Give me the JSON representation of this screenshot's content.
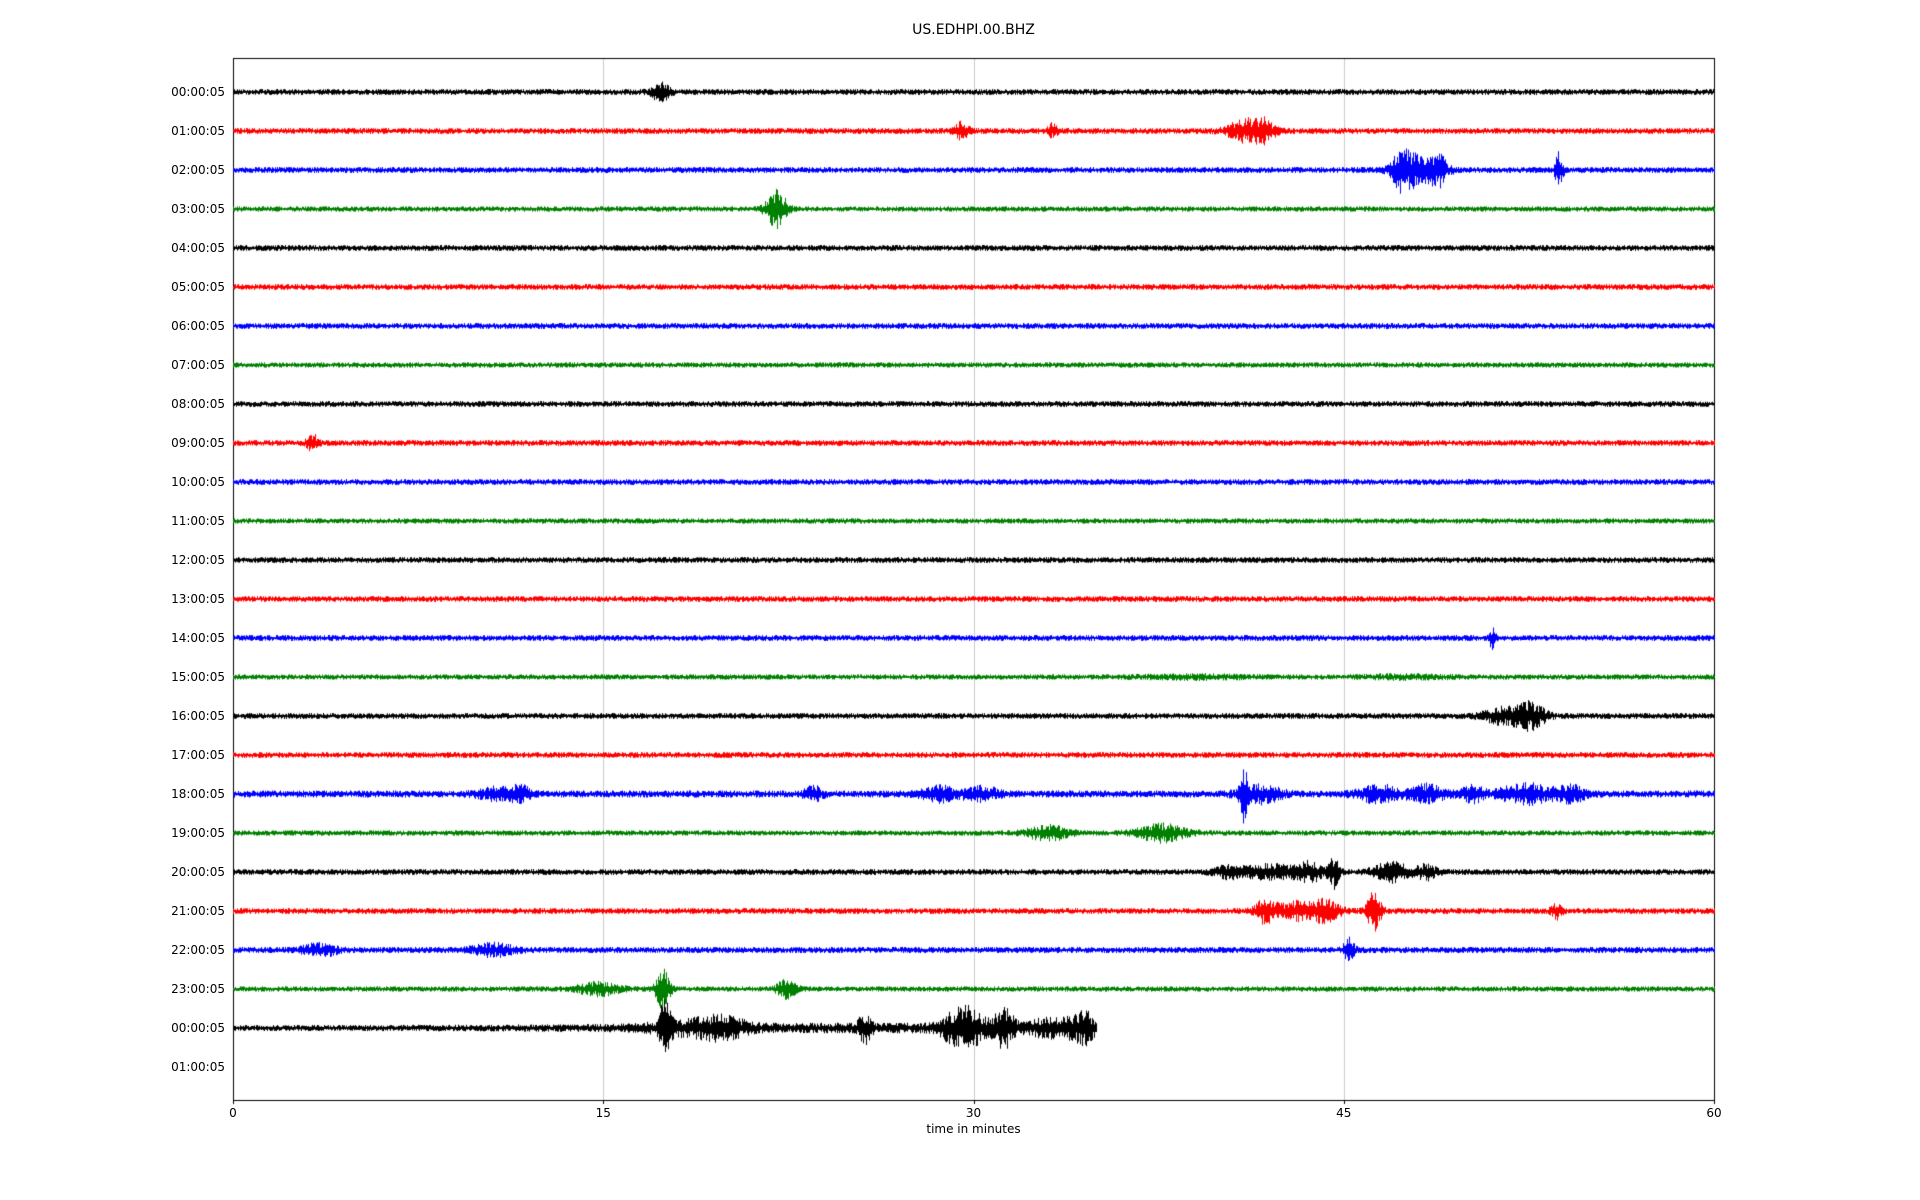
{
  "chart_data": {
    "type": "line",
    "subtype": "seismogram-helicorder",
    "title": "US.EDHPI.00.BHZ",
    "xlabel": "time in minutes",
    "x_range": [
      0,
      60
    ],
    "x_ticks": [
      "0",
      "15",
      "30",
      "45",
      "60"
    ],
    "grid_minutes": [
      15,
      30,
      45
    ],
    "grid_color": "#cccccc",
    "frame_color": "#000000",
    "trace_colors": [
      "#000000",
      "#ff0000",
      "#0000ff",
      "#008000"
    ],
    "noise_seed": 42,
    "rows": [
      {
        "label": "00:00:05",
        "color": 0,
        "base": 3.0,
        "end": 60,
        "events": [
          {
            "c": 17.3,
            "w": 0.25,
            "a": 3.0
          }
        ]
      },
      {
        "label": "01:00:05",
        "color": 1,
        "base": 3.0,
        "end": 60,
        "events": [
          {
            "c": 29.5,
            "w": 0.2,
            "a": 2.5
          },
          {
            "c": 33.2,
            "w": 0.15,
            "a": 2.2
          },
          {
            "c": 41.0,
            "w": 0.5,
            "a": 3.5
          },
          {
            "c": 41.8,
            "w": 0.3,
            "a": 3.0
          }
        ]
      },
      {
        "label": "02:00:05",
        "color": 2,
        "base": 3.0,
        "end": 60,
        "events": [
          {
            "c": 47.4,
            "w": 0.35,
            "a": 7.0
          },
          {
            "c": 48.4,
            "w": 0.5,
            "a": 4.0
          },
          {
            "c": 48.9,
            "w": 0.2,
            "a": 3.0
          },
          {
            "c": 53.7,
            "w": 0.12,
            "a": 6.0
          }
        ]
      },
      {
        "label": "03:00:05",
        "color": 3,
        "base": 2.7,
        "end": 60,
        "events": [
          {
            "c": 22.0,
            "w": 0.3,
            "a": 6.5
          }
        ]
      },
      {
        "label": "04:00:05",
        "color": 0,
        "base": 3.0,
        "end": 60,
        "events": []
      },
      {
        "label": "05:00:05",
        "color": 1,
        "base": 3.0,
        "end": 60,
        "events": []
      },
      {
        "label": "06:00:05",
        "color": 2,
        "base": 3.0,
        "end": 60,
        "events": []
      },
      {
        "label": "07:00:05",
        "color": 3,
        "base": 2.7,
        "end": 60,
        "events": []
      },
      {
        "label": "08:00:05",
        "color": 0,
        "base": 3.0,
        "end": 60,
        "events": []
      },
      {
        "label": "09:00:05",
        "color": 1,
        "base": 3.0,
        "end": 60,
        "events": [
          {
            "c": 3.2,
            "w": 0.15,
            "a": 2.8
          }
        ]
      },
      {
        "label": "10:00:05",
        "color": 2,
        "base": 3.0,
        "end": 60,
        "events": []
      },
      {
        "label": "11:00:05",
        "color": 3,
        "base": 2.7,
        "end": 60,
        "events": []
      },
      {
        "label": "12:00:05",
        "color": 0,
        "base": 3.0,
        "end": 60,
        "events": []
      },
      {
        "label": "13:00:05",
        "color": 1,
        "base": 3.0,
        "end": 60,
        "events": []
      },
      {
        "label": "14:00:05",
        "color": 2,
        "base": 3.0,
        "end": 60,
        "events": [
          {
            "c": 51.0,
            "w": 0.1,
            "a": 3.0
          }
        ]
      },
      {
        "label": "15:00:05",
        "color": 3,
        "base": 2.7,
        "end": 60,
        "events": [
          {
            "c": 39.0,
            "w": 1.5,
            "a": 0.5
          },
          {
            "c": 47.5,
            "w": 1.2,
            "a": 0.5
          }
        ]
      },
      {
        "label": "16:00:05",
        "color": 0,
        "base": 3.0,
        "end": 60,
        "events": [
          {
            "c": 51.5,
            "w": 0.6,
            "a": 2.5
          },
          {
            "c": 52.6,
            "w": 0.4,
            "a": 4.0
          }
        ]
      },
      {
        "label": "17:00:05",
        "color": 1,
        "base": 3.0,
        "end": 60,
        "events": []
      },
      {
        "label": "18:00:05",
        "color": 2,
        "base": 3.6,
        "end": 60,
        "events": [
          {
            "c": 10.8,
            "w": 0.6,
            "a": 1.6
          },
          {
            "c": 11.6,
            "w": 0.3,
            "a": 1.6
          },
          {
            "c": 23.5,
            "w": 0.25,
            "a": 1.8
          },
          {
            "c": 28.6,
            "w": 0.5,
            "a": 1.8
          },
          {
            "c": 30.3,
            "w": 0.5,
            "a": 1.8
          },
          {
            "c": 40.9,
            "w": 0.12,
            "a": 8.0
          },
          {
            "c": 41.6,
            "w": 0.6,
            "a": 2.2
          },
          {
            "c": 46.4,
            "w": 0.6,
            "a": 2.2
          },
          {
            "c": 48.4,
            "w": 0.5,
            "a": 2.4
          },
          {
            "c": 50.2,
            "w": 0.3,
            "a": 2.0
          },
          {
            "c": 52.4,
            "w": 0.8,
            "a": 2.4
          },
          {
            "c": 54.2,
            "w": 0.4,
            "a": 2.0
          }
        ]
      },
      {
        "label": "19:00:05",
        "color": 3,
        "base": 2.7,
        "end": 60,
        "events": [
          {
            "c": 33.0,
            "w": 0.6,
            "a": 2.5
          },
          {
            "c": 37.6,
            "w": 0.7,
            "a": 3.0
          }
        ]
      },
      {
        "label": "20:00:05",
        "color": 0,
        "base": 3.0,
        "end": 60,
        "events": [
          {
            "c": 40.3,
            "w": 0.4,
            "a": 1.8
          },
          {
            "c": 42.0,
            "w": 0.8,
            "a": 2.2
          },
          {
            "c": 43.6,
            "w": 0.4,
            "a": 3.0
          },
          {
            "c": 44.6,
            "w": 0.15,
            "a": 5.0
          },
          {
            "c": 46.9,
            "w": 0.5,
            "a": 3.0
          },
          {
            "c": 48.3,
            "w": 0.3,
            "a": 2.5
          }
        ]
      },
      {
        "label": "21:00:05",
        "color": 1,
        "base": 3.0,
        "end": 60,
        "events": [
          {
            "c": 41.8,
            "w": 0.3,
            "a": 3.5
          },
          {
            "c": 43.2,
            "w": 0.7,
            "a": 2.8
          },
          {
            "c": 44.3,
            "w": 0.4,
            "a": 2.5
          },
          {
            "c": 46.2,
            "w": 0.2,
            "a": 6.5
          },
          {
            "c": 53.6,
            "w": 0.15,
            "a": 2.5
          }
        ]
      },
      {
        "label": "22:00:05",
        "color": 2,
        "base": 3.1,
        "end": 60,
        "events": [
          {
            "c": 3.5,
            "w": 0.5,
            "a": 1.8
          },
          {
            "c": 10.5,
            "w": 0.6,
            "a": 1.8
          },
          {
            "c": 45.2,
            "w": 0.15,
            "a": 4.0
          }
        ]
      },
      {
        "label": "23:00:05",
        "color": 3,
        "base": 2.7,
        "end": 60,
        "events": [
          {
            "c": 14.8,
            "w": 0.6,
            "a": 2.2
          },
          {
            "c": 17.4,
            "w": 0.2,
            "a": 7.0
          },
          {
            "c": 22.4,
            "w": 0.3,
            "a": 3.0
          }
        ]
      },
      {
        "label": "00:00:05",
        "color": 0,
        "base": 3.0,
        "end": 35,
        "events": [
          {
            "c": 17.5,
            "w": 0.15,
            "a": 9.0
          },
          {
            "c": 18.6,
            "w": 1.2,
            "a": 2.0
          },
          {
            "c": 19.9,
            "w": 0.6,
            "a": 2.2
          },
          {
            "c": 25.6,
            "w": 0.2,
            "a": 4.0
          },
          {
            "c": 26.0,
            "w": 9.0,
            "a": 0.8
          },
          {
            "c": 29.2,
            "w": 0.4,
            "a": 4.0
          },
          {
            "c": 29.9,
            "w": 0.4,
            "a": 5.0
          },
          {
            "c": 31.2,
            "w": 0.3,
            "a": 6.0
          },
          {
            "c": 33.4,
            "w": 0.8,
            "a": 3.0
          },
          {
            "c": 34.5,
            "w": 0.25,
            "a": 4.0
          }
        ]
      },
      {
        "label": "01:00:05",
        "color": 1,
        "base": 3.0,
        "end": 0,
        "events": []
      }
    ]
  }
}
